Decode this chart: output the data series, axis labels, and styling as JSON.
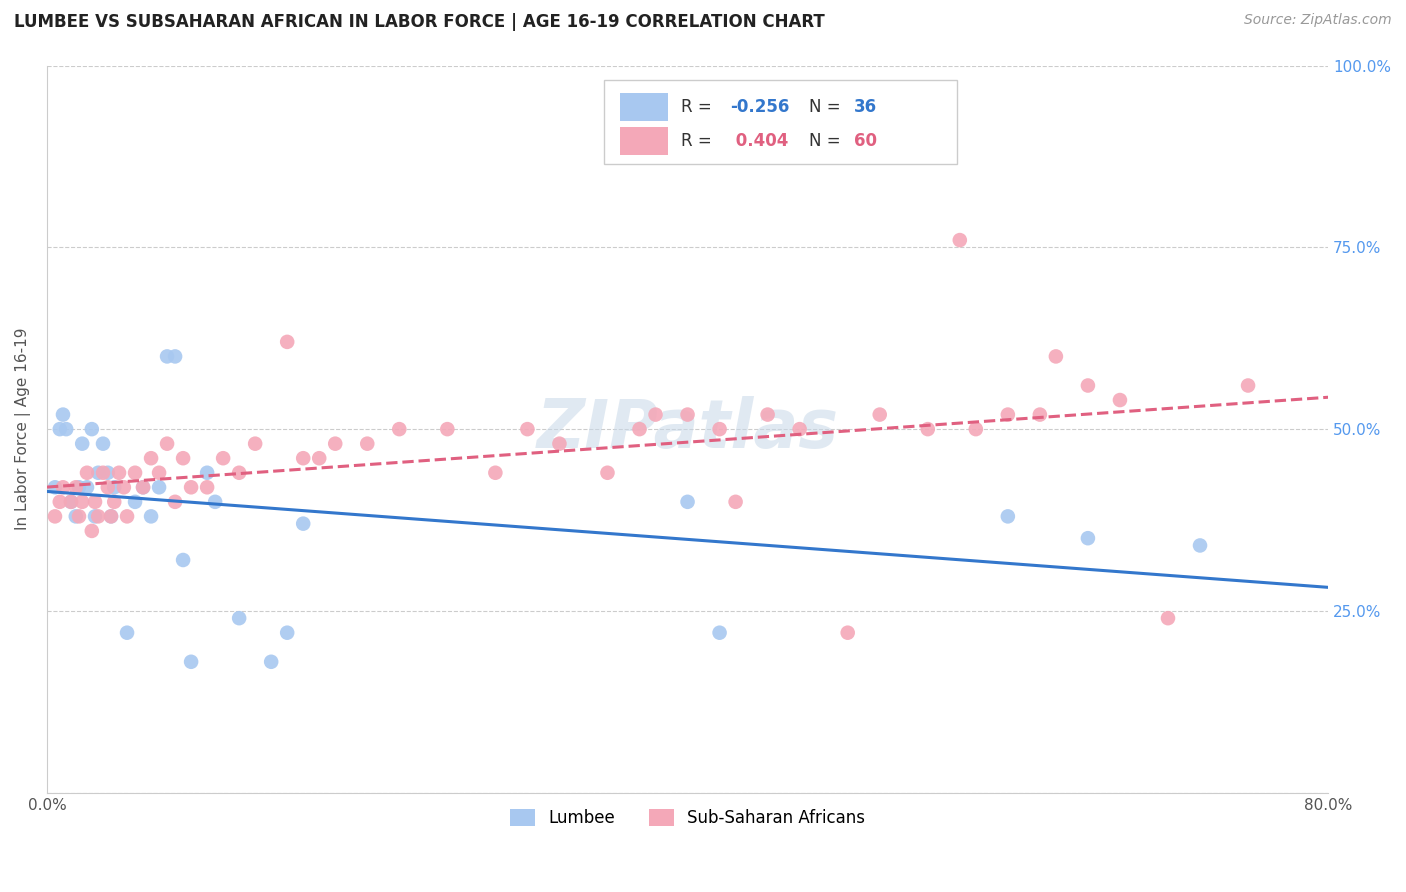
{
  "title": "LUMBEE VS SUBSAHARAN AFRICAN IN LABOR FORCE | AGE 16-19 CORRELATION CHART",
  "source": "Source: ZipAtlas.com",
  "ylabel": "In Labor Force | Age 16-19",
  "xlim": [
    0.0,
    0.8
  ],
  "ylim": [
    0.0,
    1.0
  ],
  "lumbee_color": "#a8c8f0",
  "ssa_color": "#f4a8b8",
  "lumbee_line_color": "#3377cc",
  "ssa_line_color": "#e06080",
  "lumbee_R": -0.256,
  "lumbee_N": 36,
  "ssa_R": 0.404,
  "ssa_N": 60,
  "watermark": "ZIPatlas",
  "lumbee_x": [
    0.005,
    0.008,
    0.01,
    0.012,
    0.015,
    0.018,
    0.02,
    0.022,
    0.025,
    0.028,
    0.03,
    0.032,
    0.035,
    0.038,
    0.04,
    0.042,
    0.05,
    0.055,
    0.06,
    0.065,
    0.07,
    0.075,
    0.08,
    0.085,
    0.09,
    0.1,
    0.105,
    0.12,
    0.14,
    0.15,
    0.16,
    0.4,
    0.42,
    0.6,
    0.65,
    0.72
  ],
  "lumbee_y": [
    0.42,
    0.5,
    0.52,
    0.5,
    0.4,
    0.38,
    0.42,
    0.48,
    0.42,
    0.5,
    0.38,
    0.44,
    0.48,
    0.44,
    0.38,
    0.42,
    0.22,
    0.4,
    0.42,
    0.38,
    0.42,
    0.6,
    0.6,
    0.32,
    0.18,
    0.44,
    0.4,
    0.24,
    0.18,
    0.22,
    0.37,
    0.4,
    0.22,
    0.38,
    0.35,
    0.34
  ],
  "ssa_x": [
    0.005,
    0.008,
    0.01,
    0.015,
    0.018,
    0.02,
    0.022,
    0.025,
    0.028,
    0.03,
    0.032,
    0.035,
    0.038,
    0.04,
    0.042,
    0.045,
    0.048,
    0.05,
    0.055,
    0.06,
    0.065,
    0.07,
    0.075,
    0.08,
    0.085,
    0.09,
    0.1,
    0.11,
    0.12,
    0.13,
    0.15,
    0.16,
    0.17,
    0.18,
    0.2,
    0.22,
    0.25,
    0.28,
    0.3,
    0.32,
    0.35,
    0.37,
    0.38,
    0.4,
    0.42,
    0.43,
    0.45,
    0.47,
    0.5,
    0.52,
    0.55,
    0.57,
    0.58,
    0.6,
    0.62,
    0.63,
    0.65,
    0.67,
    0.7,
    0.75
  ],
  "ssa_y": [
    0.38,
    0.4,
    0.42,
    0.4,
    0.42,
    0.38,
    0.4,
    0.44,
    0.36,
    0.4,
    0.38,
    0.44,
    0.42,
    0.38,
    0.4,
    0.44,
    0.42,
    0.38,
    0.44,
    0.42,
    0.46,
    0.44,
    0.48,
    0.4,
    0.46,
    0.42,
    0.42,
    0.46,
    0.44,
    0.48,
    0.62,
    0.46,
    0.46,
    0.48,
    0.48,
    0.5,
    0.5,
    0.44,
    0.5,
    0.48,
    0.44,
    0.5,
    0.52,
    0.52,
    0.5,
    0.4,
    0.52,
    0.5,
    0.22,
    0.52,
    0.5,
    0.76,
    0.5,
    0.52,
    0.52,
    0.6,
    0.56,
    0.54,
    0.24,
    0.56
  ]
}
